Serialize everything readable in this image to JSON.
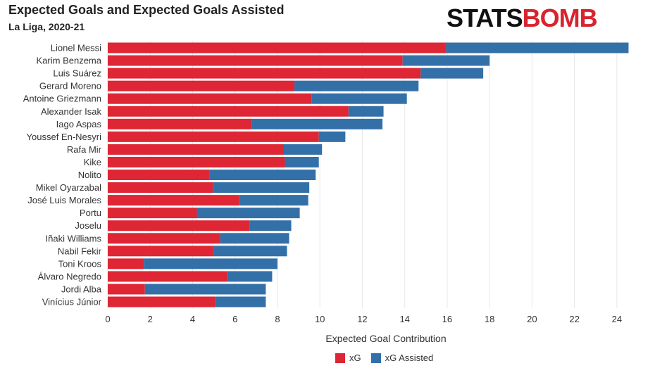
{
  "header": {
    "title": "Expected Goals and Expected Goals Assisted",
    "subtitle": "La Liga, 2020-21",
    "logo_part1": "STATS",
    "logo_part2": "BOMB"
  },
  "colors": {
    "xg": "#de2634",
    "xga": "#3470a8"
  },
  "chart_data": {
    "type": "bar",
    "orientation": "horizontal",
    "stacked": true,
    "title": "Expected Goals and Expected Goals Assisted",
    "subtitle": "La Liga, 2020-21",
    "xlabel": "Expected Goal Contribution",
    "ylabel": "",
    "xlim": [
      0,
      25
    ],
    "xticks": [
      0,
      2,
      4,
      6,
      8,
      10,
      12,
      14,
      16,
      18,
      20,
      22,
      24
    ],
    "grid": true,
    "legend_position": "bottom",
    "categories": [
      "Lionel Messi",
      "Karim Benzema",
      "Luis Suárez",
      "Gerard Moreno",
      "Antoine Griezmann",
      "Alexander Isak",
      "Iago Aspas",
      "Youssef En-Nesyri",
      "Rafa Mir",
      "Kike",
      "Nolito",
      "Mikel Oyarzabal",
      "José Luis Morales",
      "Portu",
      "Joselu",
      "Iñaki Williams",
      "Nabil Fekir",
      "Toni Kroos",
      "Álvaro Negredo",
      "Jordi Alba",
      "Vinícius Júnior"
    ],
    "series": [
      {
        "name": "xG",
        "values": [
          15.95,
          13.9,
          14.75,
          8.8,
          9.6,
          11.35,
          6.8,
          9.95,
          8.3,
          8.35,
          4.8,
          4.95,
          6.2,
          4.2,
          6.7,
          5.3,
          5.0,
          1.7,
          5.65,
          1.75,
          5.05
        ]
      },
      {
        "name": "xG Assisted",
        "values": [
          8.6,
          4.1,
          2.95,
          5.85,
          4.5,
          1.65,
          6.15,
          1.25,
          1.8,
          1.6,
          5.0,
          4.55,
          3.25,
          4.85,
          1.95,
          3.25,
          3.45,
          6.3,
          2.1,
          5.7,
          2.4
        ]
      }
    ]
  }
}
